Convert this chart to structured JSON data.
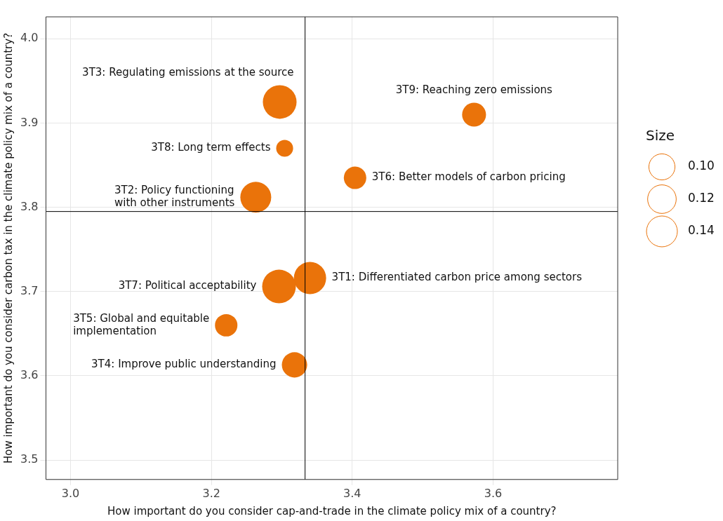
{
  "chart_data": {
    "type": "bubble",
    "xlabel": "How important do you consider cap-and-trade in the climate policy mix of a country?",
    "ylabel": "How important do you consider carbon tax in the climate policy mix of a country?",
    "legend_title": "Size",
    "series": [
      {
        "color": "#ea730a",
        "x": [
          3.297,
          3.573,
          3.304,
          3.404,
          3.263,
          3.34,
          3.296,
          3.221,
          3.318
        ],
        "values": [
          3.925,
          3.91,
          3.87,
          3.835,
          3.812,
          3.716,
          3.706,
          3.66,
          3.613
        ],
        "sizes": [
          0.167,
          0.084,
          0.042,
          0.074,
          0.14,
          0.153,
          0.167,
          0.074,
          0.094
        ]
      }
    ],
    "size_legend": [
      {
        "value": 0.1,
        "label": "0.10"
      },
      {
        "value": 0.12,
        "label": "0.12"
      },
      {
        "value": 0.14,
        "label": "0.14"
      }
    ],
    "annotations": [
      {
        "text": "3T3: Regulating emissions at the source",
        "x": 3.297,
        "y": 3.925
      },
      {
        "text": "3T9: Reaching zero emissions",
        "x": 3.573,
        "y": 3.91
      },
      {
        "text": "3T8: Long term effects",
        "x": 3.304,
        "y": 3.87
      },
      {
        "text": "3T6: Better models of carbon pricing",
        "x": 3.404,
        "y": 3.835
      },
      {
        "text": "3T2: Policy functioning\nwith other instruments",
        "x": 3.263,
        "y": 3.812
      },
      {
        "text": "3T7: Political acceptability",
        "x": 3.296,
        "y": 3.706
      },
      {
        "text": "3T1: Differentiated carbon price among sectors",
        "x": 3.34,
        "y": 3.716
      },
      {
        "text": "3T5: Global and equitable\nimplementation",
        "x": 3.221,
        "y": 3.66
      },
      {
        "text": "3T4: Improve public understanding",
        "x": 3.318,
        "y": 3.613
      }
    ],
    "ref_lines": [
      {
        "axis": "x",
        "value": 3.333,
        "color": "#000000"
      },
      {
        "axis": "y",
        "value": 3.795,
        "color": "#000000"
      }
    ],
    "xlim": [
      2.965,
      3.777
    ],
    "xticks": [
      {
        "value": 3.0,
        "label": "3.0"
      },
      3.2,
      3.4,
      3.6
    ],
    "ylim": [
      3.477,
      4.026
    ],
    "yticks": [
      3.5,
      3.6,
      3.7,
      3.8,
      3.9,
      {
        "value": 4.0,
        "label": "4.0"
      }
    ],
    "grid": true
  }
}
